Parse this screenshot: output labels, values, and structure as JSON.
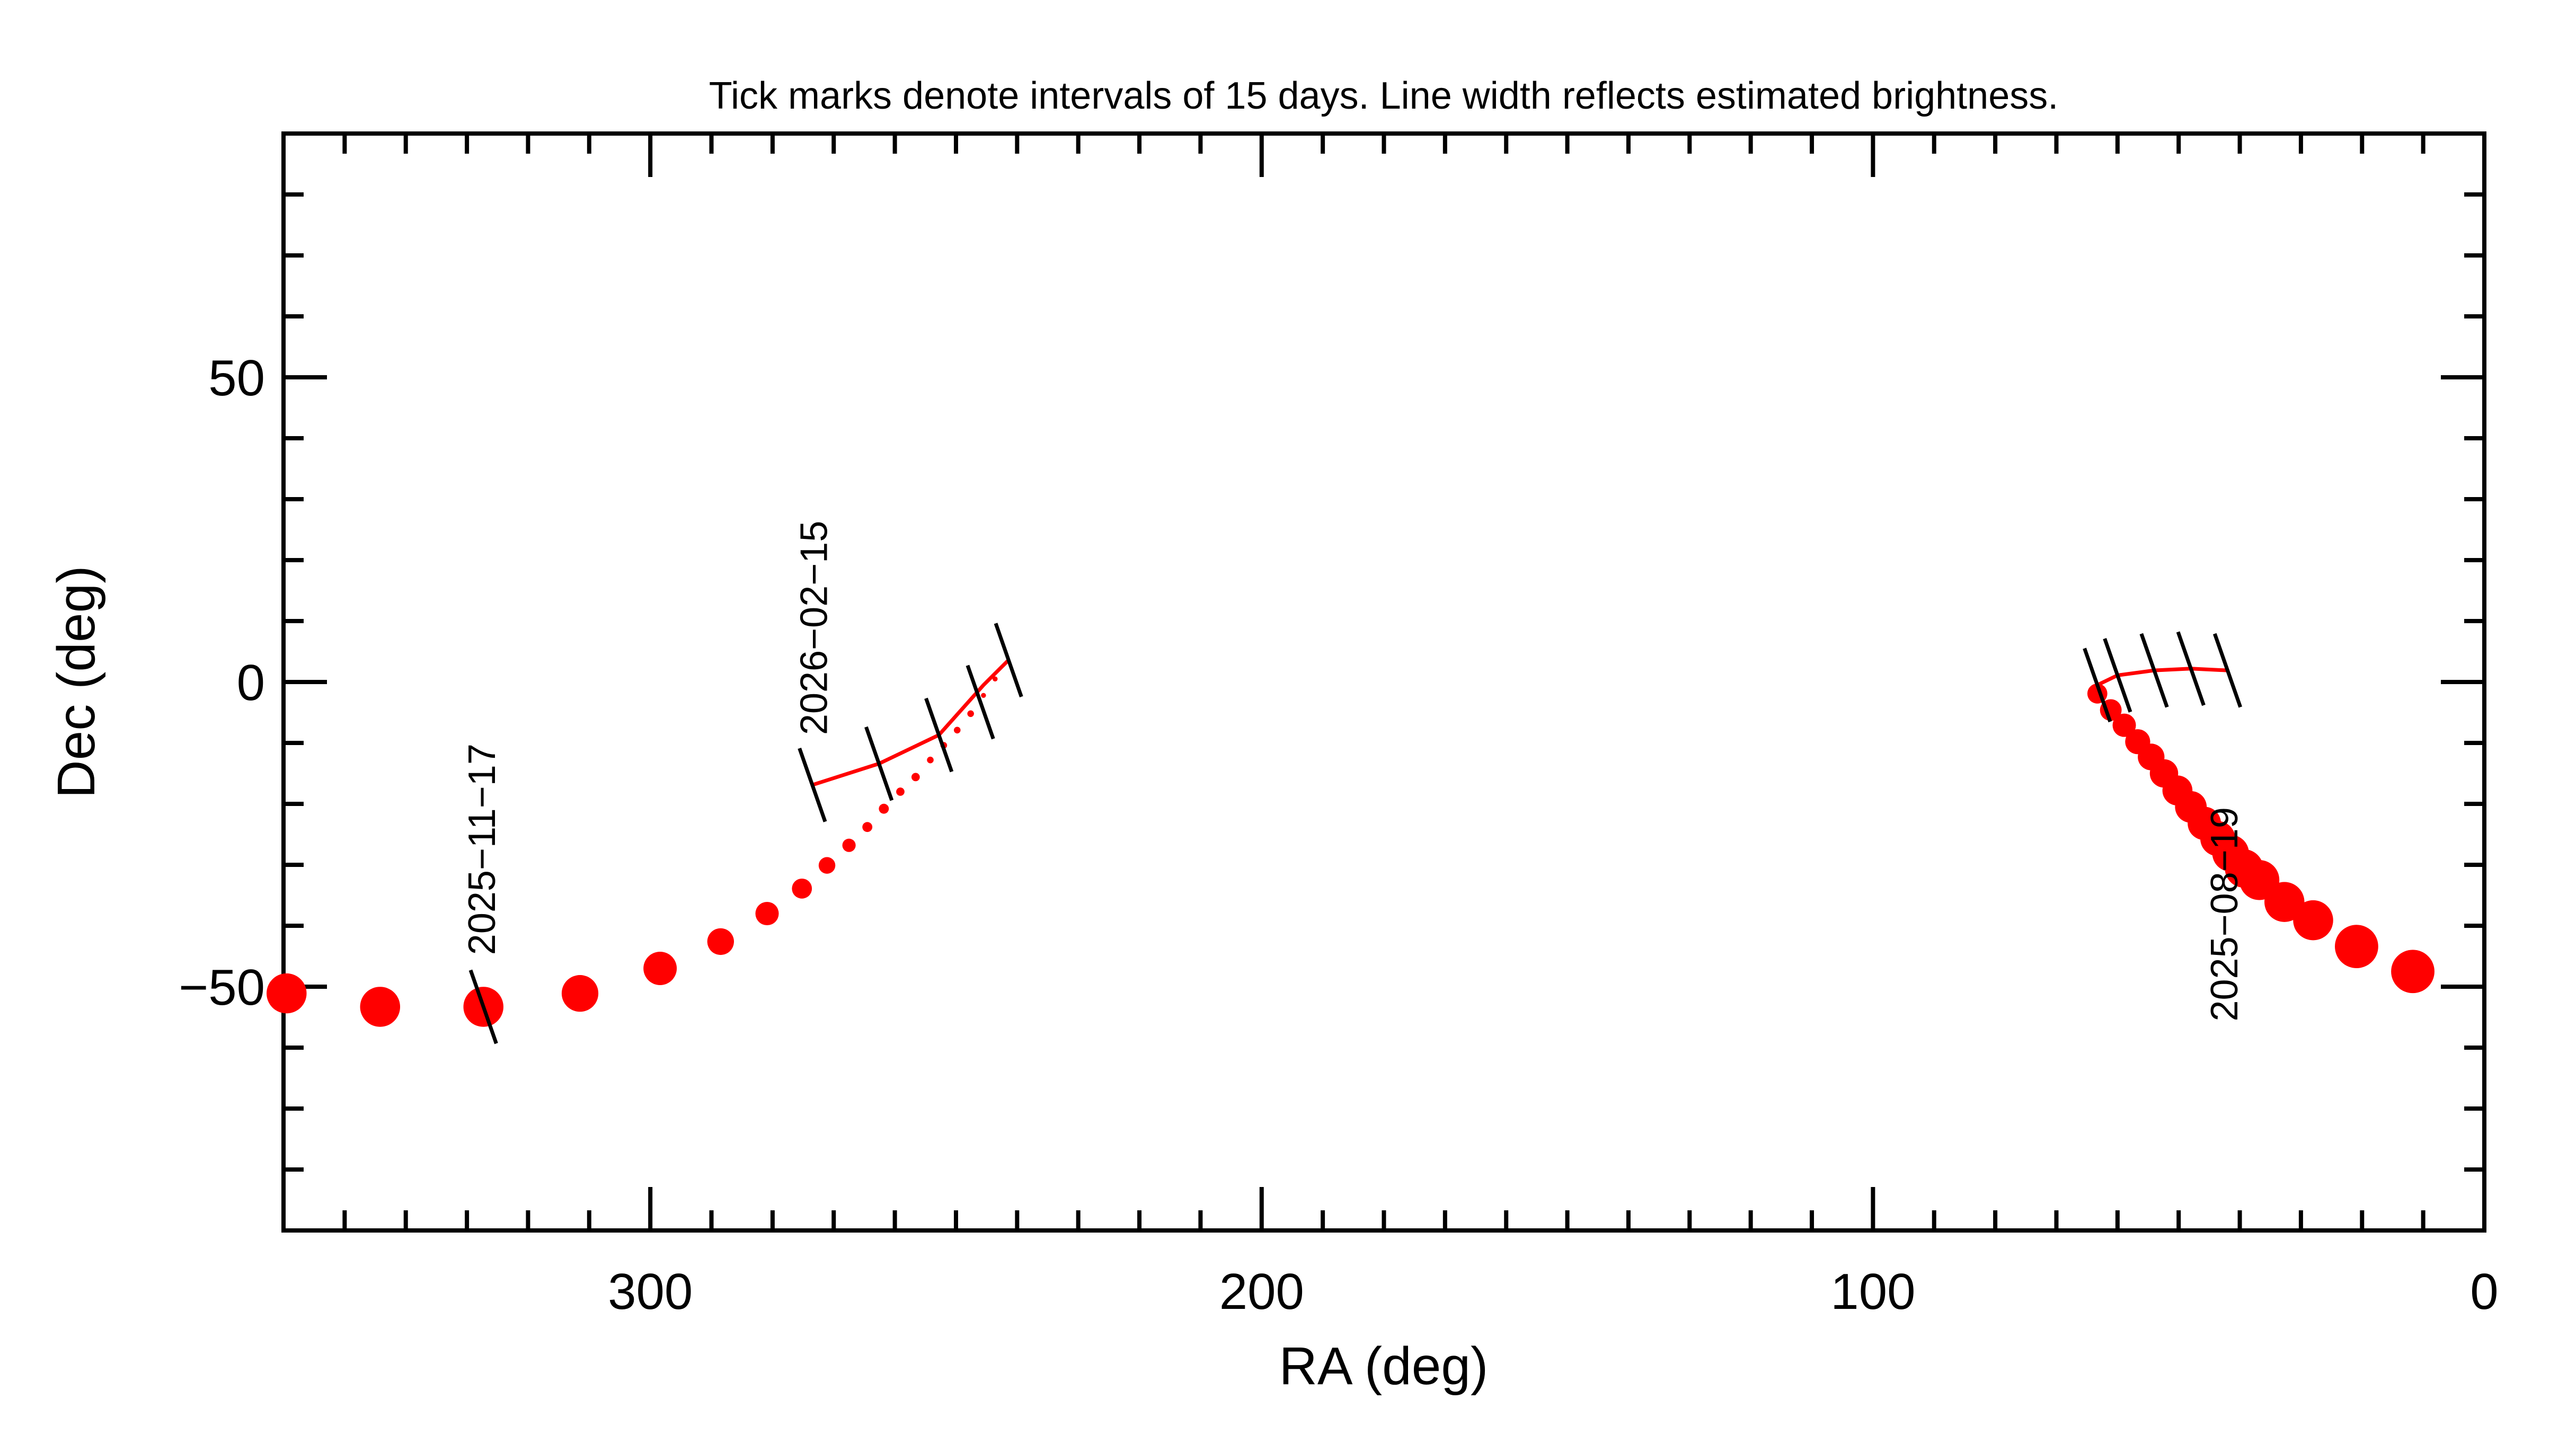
{
  "chart_data": {
    "type": "scatter",
    "title": "Tick marks denote intervals of 15 days.  Line width reflects estimated brightness.",
    "xlabel": "RA (deg)",
    "ylabel": "Dec (deg)",
    "xlim": [
      360,
      0
    ],
    "ylim": [
      -90,
      90
    ],
    "xticks": [
      300,
      200,
      100,
      0
    ],
    "yticks": [
      {
        "value": -50,
        "label": "−50"
      },
      0,
      50
    ],
    "xminorticks": [
      350,
      340,
      330,
      320,
      310,
      290,
      280,
      270,
      260,
      250,
      240,
      230,
      220,
      210,
      190,
      180,
      170,
      160,
      150,
      140,
      130,
      120,
      110,
      90,
      80,
      70,
      60,
      50,
      40,
      30,
      20,
      10
    ],
    "yminorticks": [
      -80,
      -70,
      -60,
      -40,
      -30,
      -20,
      -10,
      10,
      20,
      30,
      40,
      60,
      70,
      80
    ],
    "series": [
      {
        "color": "#ff0000",
        "x": [
          359.5,
          344.2,
          327.3,
          311.5,
          298.4,
          288.5,
          280.9,
          275.2,
          271.1,
          267.5,
          264.5,
          261.8,
          259.1,
          256.6,
          254.2,
          252.0,
          249.8,
          247.6,
          245.5,
          243.6,
          63.3,
          61.1,
          58.9,
          56.7,
          54.5,
          52.4,
          50.2,
          48.0,
          45.8,
          43.6,
          41.5,
          39.3,
          36.8,
          32.7,
          28.0,
          20.9,
          11.7
        ],
        "y": [
          -51.1,
          -53.3,
          -53.3,
          -51.1,
          -47.0,
          -42.6,
          -38.0,
          -33.9,
          -30.1,
          -26.8,
          -23.8,
          -20.8,
          -18.0,
          -15.6,
          -12.8,
          -10.4,
          -7.9,
          -5.2,
          -2.2,
          0.5,
          -1.9,
          -4.6,
          -7.1,
          -9.8,
          -12.3,
          -15.0,
          -17.8,
          -20.5,
          -23.2,
          -25.7,
          -28.1,
          -30.6,
          -32.5,
          -36.1,
          -39.1,
          -43.4,
          -47.5
        ],
        "sizes": [
          12,
          12,
          12,
          11,
          10,
          8,
          7,
          6,
          5,
          4,
          3,
          3,
          2.5,
          2.5,
          2,
          2,
          2,
          2,
          1.5,
          1.5,
          6,
          6.5,
          7,
          7.5,
          8,
          8.5,
          9,
          9.5,
          10,
          10.5,
          11,
          11.5,
          12,
          12,
          12,
          13,
          13
        ]
      }
    ],
    "lines": [
      {
        "color": "#ff0000",
        "x": [
          241.4,
          245.5,
          252.8,
          262.6,
          273.5
        ],
        "y": [
          3.6,
          -0.5,
          -8.7,
          -13.4,
          -16.9
        ]
      },
      {
        "color": "#ff0000",
        "x": [
          63.3,
          60.0,
          54.0,
          48.0,
          42.0
        ],
        "y": [
          -0.5,
          1.1,
          1.9,
          2.2,
          1.9
        ]
      }
    ],
    "interval_ticks": {
      "color": "#000000",
      "x": [
        241.4,
        246.0,
        252.8,
        262.6,
        273.5,
        327.3,
        63.3,
        60.0,
        54.0,
        48.0,
        42.0
      ],
      "y": [
        3.6,
        -3.3,
        -8.7,
        -13.4,
        -16.9,
        -53.3,
        -0.5,
        1.1,
        1.9,
        2.2,
        1.9
      ]
    },
    "annotations": [
      {
        "text": "2025−11−17",
        "x": 327.3,
        "y": -44.8
      },
      {
        "text": "2026−02−15",
        "x": 273.0,
        "y": -8.7
      },
      {
        "text": "2025−08−19",
        "x": 42.3,
        "y": -55.7
      }
    ]
  }
}
